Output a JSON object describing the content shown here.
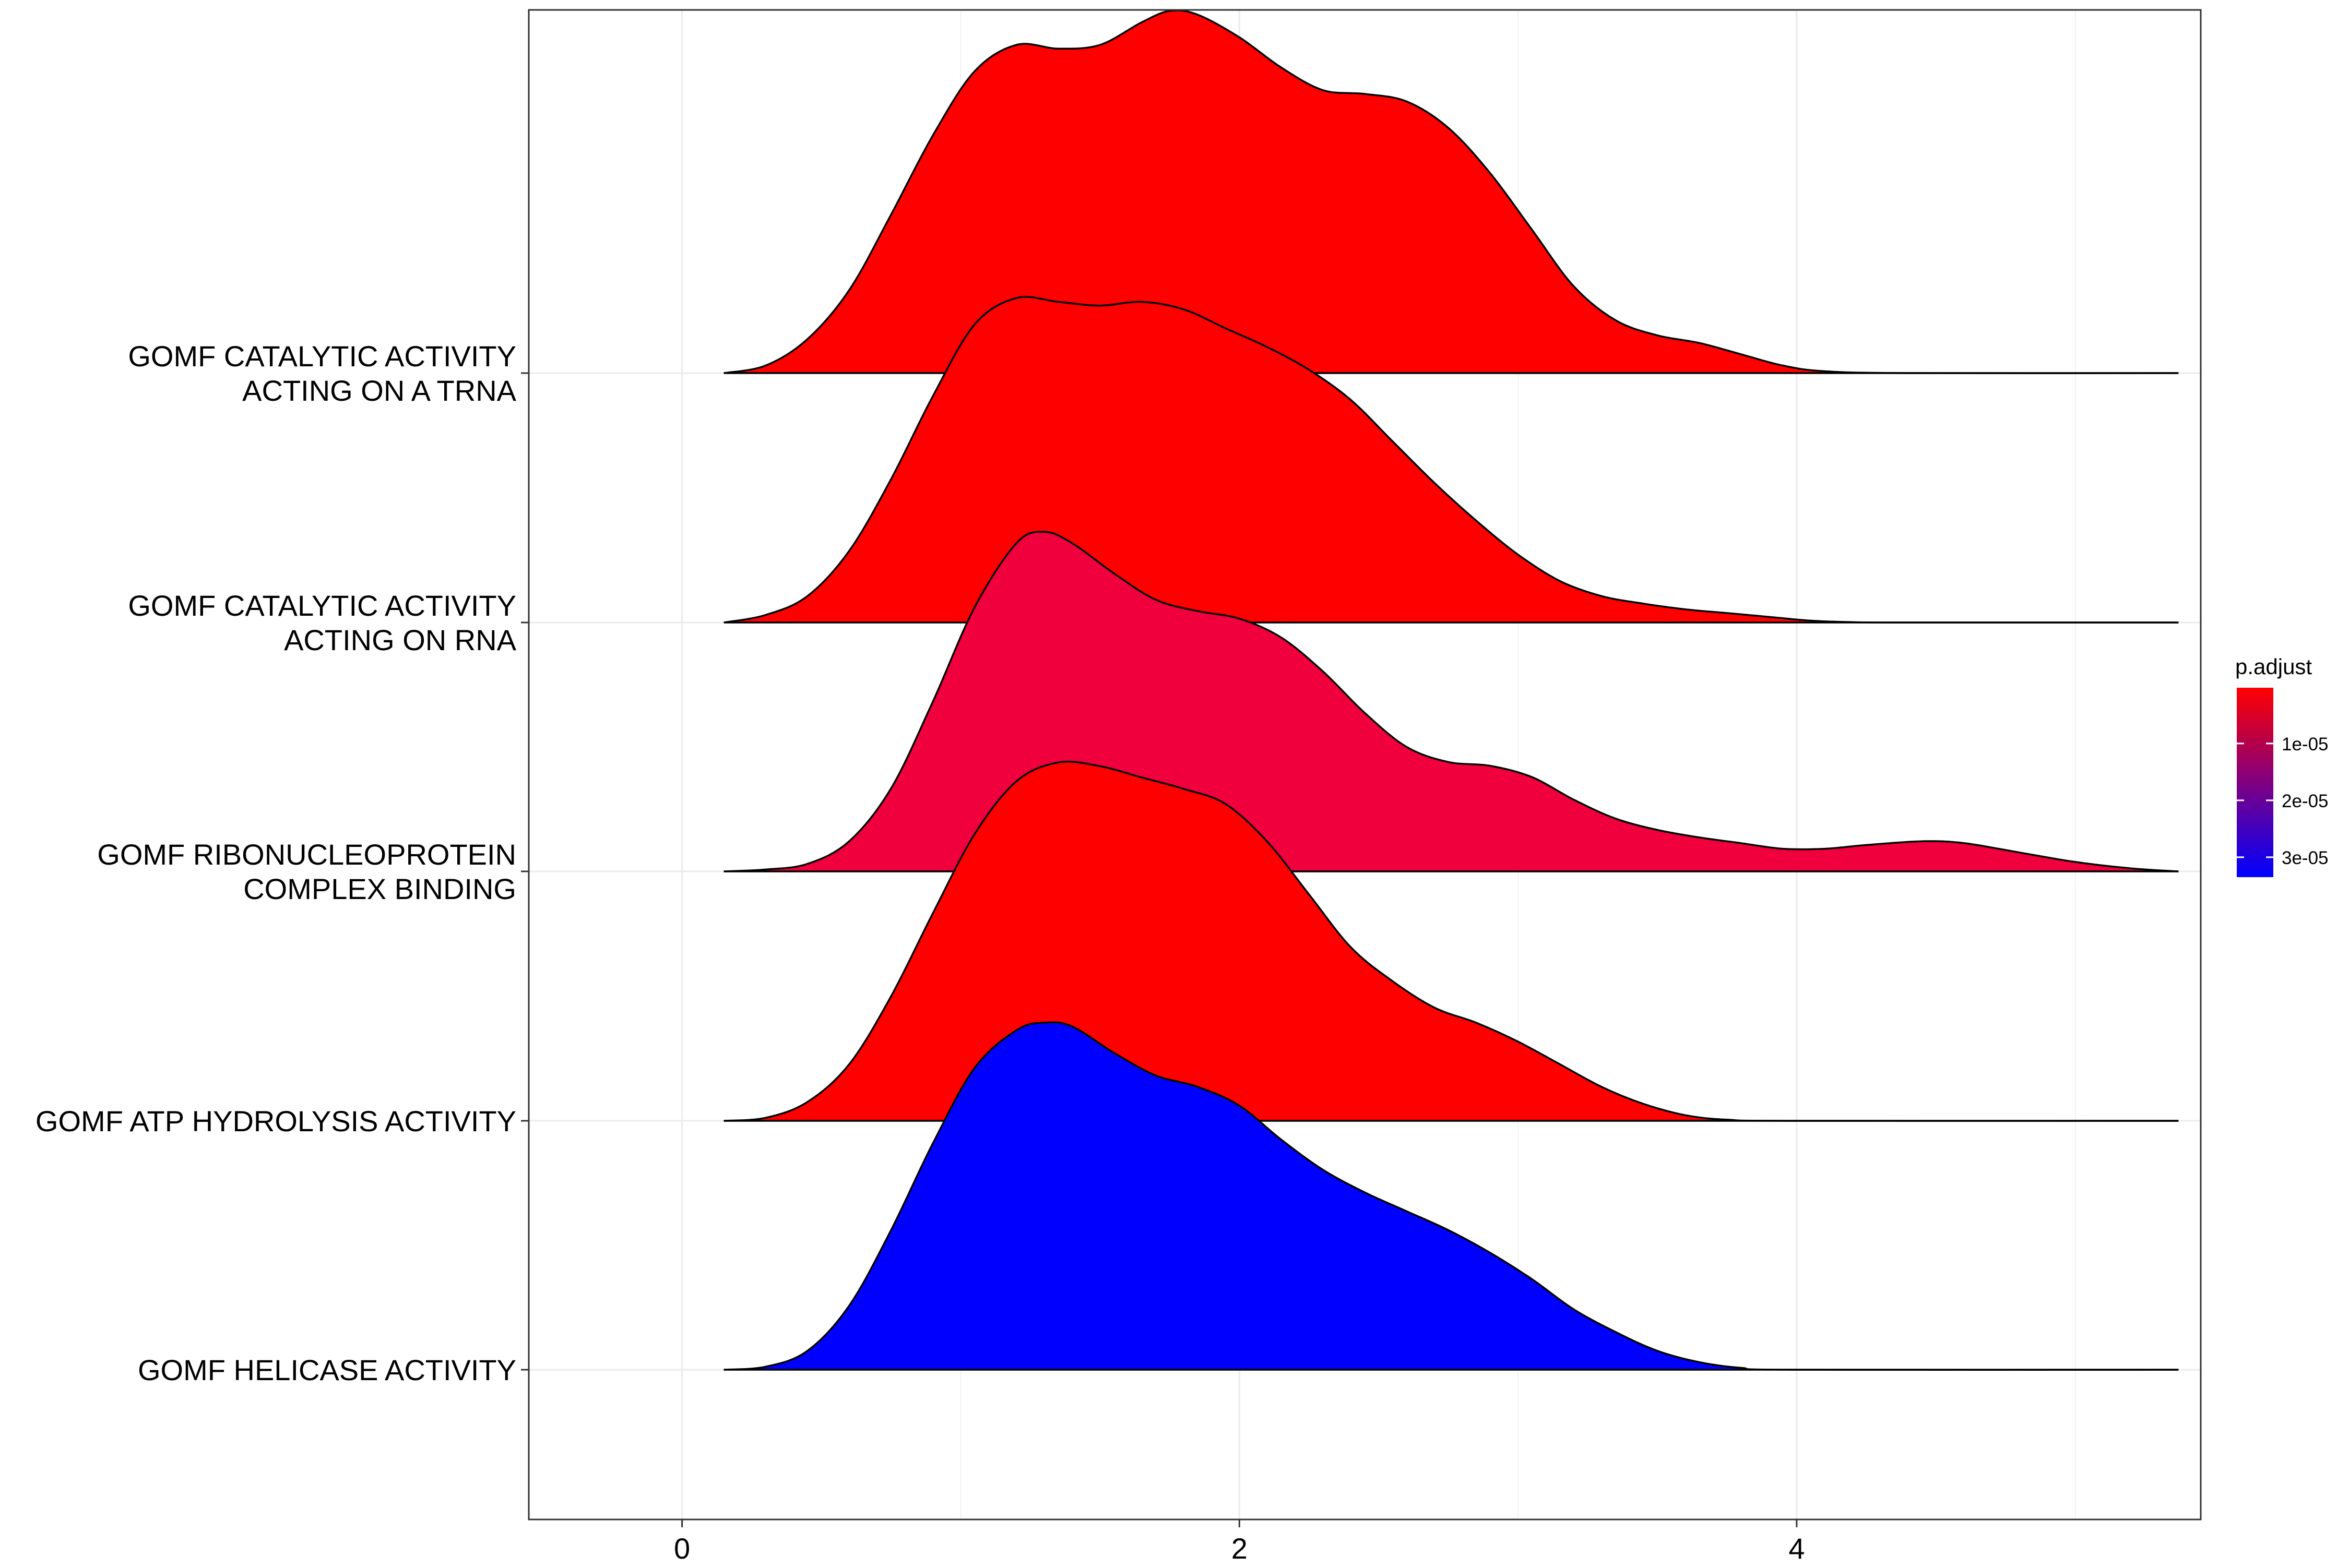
{
  "chart_data": {
    "type": "ridgeline",
    "title": "",
    "xlabel": "",
    "ylabel": "",
    "xlim": [
      -0.55,
      5.45
    ],
    "x_ticks": [
      0,
      2,
      4
    ],
    "x_tick_labels": [
      "0",
      "2",
      "4"
    ],
    "x_minor_gridlines": [
      1,
      3,
      5
    ],
    "grid": true,
    "legend": {
      "title": "p.adjust",
      "placement": "right",
      "gradient_colors": [
        "#ff0000",
        "#0000ff"
      ],
      "domain": [
        2e-07,
        3.35e-05
      ],
      "ticks": [
        1e-05,
        2e-05,
        3e-05
      ],
      "tick_labels": [
        "1e-05",
        "2e-05",
        "3e-05"
      ]
    },
    "categories": [
      {
        "name_lines": [
          "GOMF CATALYTIC ACTIVITY",
          "ACTING ON A TRNA"
        ],
        "fill": "#ff0000",
        "density": [
          [
            0.15,
            0
          ],
          [
            0.3,
            0.02
          ],
          [
            0.45,
            0.09
          ],
          [
            0.6,
            0.22
          ],
          [
            0.75,
            0.42
          ],
          [
            0.9,
            0.63
          ],
          [
            1.05,
            0.8
          ],
          [
            1.2,
            0.87
          ],
          [
            1.35,
            0.86
          ],
          [
            1.5,
            0.87
          ],
          [
            1.65,
            0.93
          ],
          [
            1.75,
            0.96
          ],
          [
            1.85,
            0.95
          ],
          [
            2.0,
            0.89
          ],
          [
            2.15,
            0.81
          ],
          [
            2.3,
            0.75
          ],
          [
            2.45,
            0.74
          ],
          [
            2.6,
            0.72
          ],
          [
            2.75,
            0.65
          ],
          [
            2.9,
            0.53
          ],
          [
            3.05,
            0.38
          ],
          [
            3.2,
            0.23
          ],
          [
            3.35,
            0.14
          ],
          [
            3.5,
            0.1
          ],
          [
            3.65,
            0.08
          ],
          [
            3.8,
            0.05
          ],
          [
            3.95,
            0.02
          ],
          [
            4.1,
            0.005
          ],
          [
            4.4,
            0
          ],
          [
            5.37,
            0
          ]
        ]
      },
      {
        "name_lines": [
          "GOMF CATALYTIC ACTIVITY",
          "ACTING ON RNA"
        ],
        "fill": "#ff0000",
        "density": [
          [
            0.15,
            0
          ],
          [
            0.3,
            0.02
          ],
          [
            0.45,
            0.07
          ],
          [
            0.6,
            0.19
          ],
          [
            0.75,
            0.38
          ],
          [
            0.9,
            0.6
          ],
          [
            1.05,
            0.79
          ],
          [
            1.2,
            0.86
          ],
          [
            1.35,
            0.85
          ],
          [
            1.5,
            0.84
          ],
          [
            1.65,
            0.85
          ],
          [
            1.8,
            0.83
          ],
          [
            1.95,
            0.78
          ],
          [
            2.1,
            0.73
          ],
          [
            2.25,
            0.67
          ],
          [
            2.4,
            0.59
          ],
          [
            2.55,
            0.48
          ],
          [
            2.7,
            0.37
          ],
          [
            2.85,
            0.27
          ],
          [
            3.0,
            0.18
          ],
          [
            3.15,
            0.11
          ],
          [
            3.3,
            0.07
          ],
          [
            3.45,
            0.05
          ],
          [
            3.6,
            0.035
          ],
          [
            3.75,
            0.025
          ],
          [
            3.9,
            0.015
          ],
          [
            4.05,
            0.005
          ],
          [
            4.2,
            0.001
          ],
          [
            4.4,
            0
          ],
          [
            5.37,
            0
          ]
        ]
      },
      {
        "name_lines": [
          "GOMF RIBONUCLEOPROTEIN",
          "COMPLEX BINDING"
        ],
        "fill": "#f0003c",
        "density": [
          [
            0.15,
            0
          ],
          [
            0.3,
            0.005
          ],
          [
            0.45,
            0.02
          ],
          [
            0.6,
            0.08
          ],
          [
            0.75,
            0.22
          ],
          [
            0.9,
            0.45
          ],
          [
            1.05,
            0.7
          ],
          [
            1.2,
            0.87
          ],
          [
            1.3,
            0.9
          ],
          [
            1.4,
            0.87
          ],
          [
            1.55,
            0.79
          ],
          [
            1.7,
            0.72
          ],
          [
            1.85,
            0.69
          ],
          [
            2.0,
            0.67
          ],
          [
            2.15,
            0.62
          ],
          [
            2.3,
            0.53
          ],
          [
            2.45,
            0.42
          ],
          [
            2.6,
            0.33
          ],
          [
            2.75,
            0.29
          ],
          [
            2.9,
            0.28
          ],
          [
            3.05,
            0.25
          ],
          [
            3.2,
            0.19
          ],
          [
            3.35,
            0.14
          ],
          [
            3.5,
            0.11
          ],
          [
            3.65,
            0.09
          ],
          [
            3.8,
            0.075
          ],
          [
            3.95,
            0.06
          ],
          [
            4.1,
            0.06
          ],
          [
            4.25,
            0.07
          ],
          [
            4.45,
            0.08
          ],
          [
            4.6,
            0.075
          ],
          [
            4.8,
            0.05
          ],
          [
            5.0,
            0.025
          ],
          [
            5.2,
            0.008
          ],
          [
            5.37,
            0
          ]
        ]
      },
      {
        "name_lines": [
          "GOMF ATP HYDROLYSIS ACTIVITY"
        ],
        "fill": "#ff0000",
        "density": [
          [
            0.15,
            0
          ],
          [
            0.3,
            0.008
          ],
          [
            0.45,
            0.05
          ],
          [
            0.6,
            0.15
          ],
          [
            0.75,
            0.33
          ],
          [
            0.9,
            0.55
          ],
          [
            1.05,
            0.76
          ],
          [
            1.2,
            0.9
          ],
          [
            1.35,
            0.95
          ],
          [
            1.5,
            0.94
          ],
          [
            1.65,
            0.91
          ],
          [
            1.8,
            0.88
          ],
          [
            1.95,
            0.84
          ],
          [
            2.1,
            0.74
          ],
          [
            2.25,
            0.6
          ],
          [
            2.4,
            0.46
          ],
          [
            2.55,
            0.37
          ],
          [
            2.7,
            0.3
          ],
          [
            2.85,
            0.26
          ],
          [
            3.0,
            0.21
          ],
          [
            3.15,
            0.15
          ],
          [
            3.3,
            0.09
          ],
          [
            3.45,
            0.045
          ],
          [
            3.6,
            0.015
          ],
          [
            3.75,
            0.003
          ],
          [
            4.0,
            0
          ],
          [
            5.37,
            0
          ]
        ]
      },
      {
        "name_lines": [
          "GOMF HELICASE ACTIVITY"
        ],
        "fill": "#0000ff",
        "density": [
          [
            0.15,
            0
          ],
          [
            0.3,
            0.008
          ],
          [
            0.45,
            0.05
          ],
          [
            0.6,
            0.17
          ],
          [
            0.75,
            0.37
          ],
          [
            0.9,
            0.6
          ],
          [
            1.05,
            0.8
          ],
          [
            1.2,
            0.9
          ],
          [
            1.3,
            0.92
          ],
          [
            1.4,
            0.91
          ],
          [
            1.55,
            0.84
          ],
          [
            1.7,
            0.78
          ],
          [
            1.85,
            0.75
          ],
          [
            2.0,
            0.7
          ],
          [
            2.15,
            0.61
          ],
          [
            2.3,
            0.53
          ],
          [
            2.45,
            0.47
          ],
          [
            2.6,
            0.42
          ],
          [
            2.75,
            0.37
          ],
          [
            2.9,
            0.31
          ],
          [
            3.05,
            0.24
          ],
          [
            3.2,
            0.16
          ],
          [
            3.35,
            0.1
          ],
          [
            3.5,
            0.05
          ],
          [
            3.65,
            0.02
          ],
          [
            3.8,
            0.005
          ],
          [
            4.0,
            0
          ],
          [
            5.37,
            0
          ]
        ]
      }
    ]
  }
}
